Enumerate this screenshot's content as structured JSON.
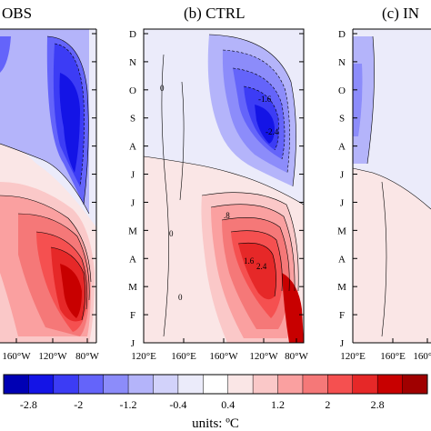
{
  "chart_data": {
    "type": "heatmap",
    "description_panels": [
      {
        "id": "a",
        "title": "OBS"
      },
      {
        "id": "b",
        "title": "(b) CTRL"
      },
      {
        "id": "c",
        "title": "(c) IN"
      }
    ],
    "y_months": [
      "J",
      "F",
      "M",
      "A",
      "M",
      "J",
      "J",
      "A",
      "S",
      "O",
      "N",
      "D"
    ],
    "x_ticks_left": [
      "160°W",
      "120°W",
      "80°W"
    ],
    "x_ticks_mid": [
      "120°E",
      "160°E",
      "160°W",
      "120°W",
      "80°W"
    ],
    "x_ticks_right": [
      "120°E",
      "160°E",
      "160°W"
    ],
    "colorbar": {
      "labels": [
        "-2.8",
        "-2",
        "-1.2",
        "-0.4",
        "0.4",
        "1.2",
        "2",
        "2.8"
      ],
      "colors": [
        "#0000b4",
        "#1414e6",
        "#3c3cf5",
        "#6464fa",
        "#8c8cfa",
        "#b4b4fa",
        "#d2d2fa",
        "#ebebfa",
        "#ffffff",
        "#fae6e6",
        "#fac8c8",
        "#faa0a0",
        "#f57878",
        "#f55050",
        "#e62828",
        "#c80000",
        "#a00000"
      ],
      "units": "units: ºC"
    },
    "contour_labels": [
      "0",
      "-.8",
      "-1.6",
      "-2.4",
      ".8",
      "1.6",
      "2.4"
    ]
  }
}
